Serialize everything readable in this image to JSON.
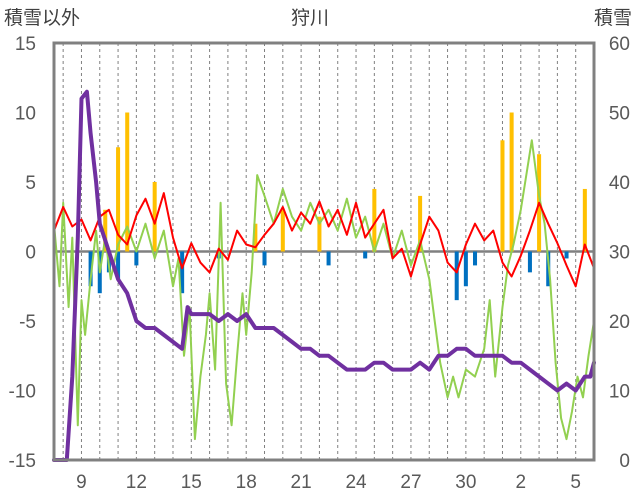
{
  "chart_data": {
    "type": "line",
    "title": "狩川",
    "ylabel_left": "積雪以外",
    "ylabel_right": "積雪",
    "xlabel": "",
    "x_tick_labels": [
      "9",
      "12",
      "15",
      "18",
      "21",
      "24",
      "27",
      "30",
      "2",
      "5"
    ],
    "x_tick_days": [
      1,
      4,
      7,
      10,
      13,
      16,
      19,
      22,
      25,
      28
    ],
    "xlim": [
      -0.5,
      29
    ],
    "ylim_left": [
      -15,
      15
    ],
    "ylim_right": [
      0,
      60
    ],
    "yticks_left": [
      "15",
      "10",
      "5",
      "0",
      "-5",
      "-10",
      "-15"
    ],
    "yticks_left_values": [
      15,
      10,
      5,
      0,
      -5,
      -10,
      -15
    ],
    "yticks_right": [
      "60",
      "50",
      "40",
      "30",
      "20",
      "10",
      "0"
    ],
    "yticks_right_values": [
      60,
      50,
      40,
      30,
      20,
      10,
      0
    ],
    "grid": true,
    "zero_line": true,
    "legend": "none",
    "colors": {
      "red_series": "#ff0000",
      "green_series": "#92d050",
      "snow_depth": "#7030a0",
      "positive_bars": "#ffc000",
      "negative_bars": "#0070c0",
      "grid": "#808080",
      "zero_line": "#808080",
      "frame": "#808080",
      "tick_text": "#595959"
    },
    "series": [
      {
        "axis": "left",
        "color": "#ff0000",
        "points": [
          [
            -0.5,
            1.5
          ],
          [
            0,
            3.2
          ],
          [
            0.5,
            1.8
          ],
          [
            1,
            2.3
          ],
          [
            1.5,
            0.8
          ],
          [
            2,
            2.5
          ],
          [
            2.5,
            3.0
          ],
          [
            3,
            1.2
          ],
          [
            3.5,
            0.5
          ],
          [
            4,
            2.6
          ],
          [
            4.5,
            3.8
          ],
          [
            5,
            2.0
          ],
          [
            5.5,
            4.2
          ],
          [
            6,
            1.0
          ],
          [
            6.5,
            -1.2
          ],
          [
            7,
            0.6
          ],
          [
            7.5,
            -0.8
          ],
          [
            8,
            -1.5
          ],
          [
            8.5,
            0.2
          ],
          [
            9,
            -0.6
          ],
          [
            9.5,
            1.5
          ],
          [
            10,
            0.5
          ],
          [
            10.5,
            0.3
          ],
          [
            11,
            1.2
          ],
          [
            11.5,
            2.0
          ],
          [
            12,
            3.2
          ],
          [
            12.5,
            1.5
          ],
          [
            13,
            2.8
          ],
          [
            13.5,
            2.0
          ],
          [
            14,
            3.6
          ],
          [
            14.5,
            1.8
          ],
          [
            15,
            3.0
          ],
          [
            15.5,
            1.2
          ],
          [
            16,
            3.5
          ],
          [
            16.5,
            1.0
          ],
          [
            17,
            2.0
          ],
          [
            17.5,
            3.0
          ],
          [
            18,
            -0.5
          ],
          [
            18.5,
            0.2
          ],
          [
            19,
            -1.8
          ],
          [
            19.5,
            0.5
          ],
          [
            20,
            2.5
          ],
          [
            20.5,
            1.5
          ],
          [
            21,
            -0.8
          ],
          [
            21.5,
            -1.5
          ],
          [
            22,
            0.5
          ],
          [
            22.5,
            2.0
          ],
          [
            23,
            0.8
          ],
          [
            23.5,
            1.5
          ],
          [
            24,
            -0.8
          ],
          [
            24.5,
            -1.8
          ],
          [
            25,
            -0.3
          ],
          [
            25.5,
            1.5
          ],
          [
            26,
            3.5
          ],
          [
            26.5,
            2.0
          ],
          [
            27,
            0.6
          ],
          [
            27.5,
            -1.0
          ],
          [
            28,
            -2.5
          ],
          [
            28.5,
            0.5
          ],
          [
            29,
            -1.2
          ]
        ]
      },
      {
        "axis": "left",
        "color": "#92d050",
        "points": [
          [
            -0.5,
            2.0
          ],
          [
            -0.2,
            -2.5
          ],
          [
            0,
            3.5
          ],
          [
            0.3,
            -4.0
          ],
          [
            0.5,
            1.0
          ],
          [
            0.8,
            -12.5
          ],
          [
            1.0,
            -3.5
          ],
          [
            1.2,
            -6.0
          ],
          [
            1.5,
            -2.0
          ],
          [
            1.8,
            1.5
          ],
          [
            2.0,
            -1.5
          ],
          [
            2.3,
            1.0
          ],
          [
            2.6,
            -2.0
          ],
          [
            3.0,
            0.5
          ],
          [
            3.5,
            1.8
          ],
          [
            4.0,
            0.0
          ],
          [
            4.5,
            2.0
          ],
          [
            5.0,
            -0.5
          ],
          [
            5.5,
            1.5
          ],
          [
            6.0,
            -2.5
          ],
          [
            6.3,
            -0.5
          ],
          [
            6.6,
            -7.5
          ],
          [
            6.9,
            -4.0
          ],
          [
            7.2,
            -13.5
          ],
          [
            7.5,
            -9.0
          ],
          [
            7.8,
            -6.0
          ],
          [
            8.0,
            -3.0
          ],
          [
            8.3,
            -8.5
          ],
          [
            8.6,
            3.5
          ],
          [
            8.9,
            -9.5
          ],
          [
            9.2,
            -12.5
          ],
          [
            9.5,
            -7.5
          ],
          [
            9.8,
            -3.0
          ],
          [
            10.0,
            -6.0
          ],
          [
            10.3,
            -1.5
          ],
          [
            10.6,
            5.5
          ],
          [
            11.0,
            4.0
          ],
          [
            11.5,
            2.0
          ],
          [
            12.0,
            4.5
          ],
          [
            12.5,
            2.5
          ],
          [
            13.0,
            1.5
          ],
          [
            13.5,
            3.5
          ],
          [
            14.0,
            2.0
          ],
          [
            14.5,
            3.0
          ],
          [
            15.0,
            1.5
          ],
          [
            15.5,
            3.8
          ],
          [
            16.0,
            1.0
          ],
          [
            16.5,
            2.5
          ],
          [
            17.0,
            0.0
          ],
          [
            17.5,
            2.0
          ],
          [
            18.0,
            -0.5
          ],
          [
            18.5,
            1.5
          ],
          [
            19.0,
            -1.0
          ],
          [
            19.5,
            0.8
          ],
          [
            20.0,
            -2.0
          ],
          [
            20.3,
            -5.0
          ],
          [
            20.6,
            -8.0
          ],
          [
            21.0,
            -10.5
          ],
          [
            21.3,
            -9.0
          ],
          [
            21.6,
            -10.5
          ],
          [
            22.0,
            -8.5
          ],
          [
            22.5,
            -9.0
          ],
          [
            23.0,
            -7.0
          ],
          [
            23.3,
            -3.5
          ],
          [
            23.6,
            -9.0
          ],
          [
            24.0,
            -4.0
          ],
          [
            24.3,
            -1.0
          ],
          [
            24.6,
            0.5
          ],
          [
            25.0,
            3.0
          ],
          [
            25.3,
            5.5
          ],
          [
            25.6,
            8.0
          ],
          [
            26.0,
            4.0
          ],
          [
            26.3,
            2.0
          ],
          [
            26.6,
            -2.0
          ],
          [
            26.9,
            -8.0
          ],
          [
            27.2,
            -12.0
          ],
          [
            27.5,
            -13.5
          ],
          [
            27.8,
            -11.5
          ],
          [
            28.1,
            -9.0
          ],
          [
            28.4,
            -10.5
          ],
          [
            28.7,
            -7.5
          ],
          [
            29.0,
            -5.0
          ]
        ]
      },
      {
        "axis": "right",
        "color": "#7030a0",
        "points": [
          [
            -0.5,
            0
          ],
          [
            0.2,
            0
          ],
          [
            0.5,
            12
          ],
          [
            0.8,
            32
          ],
          [
            1.0,
            52
          ],
          [
            1.3,
            53
          ],
          [
            1.5,
            47
          ],
          [
            1.8,
            40
          ],
          [
            2.0,
            34
          ],
          [
            2.5,
            30
          ],
          [
            3.0,
            26
          ],
          [
            3.5,
            24
          ],
          [
            4.0,
            20
          ],
          [
            4.5,
            19
          ],
          [
            5.0,
            19
          ],
          [
            5.5,
            18
          ],
          [
            6.0,
            17
          ],
          [
            6.5,
            16
          ],
          [
            6.8,
            22
          ],
          [
            7.0,
            21
          ],
          [
            7.5,
            21
          ],
          [
            8.0,
            21
          ],
          [
            8.5,
            20
          ],
          [
            9.0,
            21
          ],
          [
            9.5,
            20
          ],
          [
            10.0,
            21
          ],
          [
            10.5,
            19
          ],
          [
            11.0,
            19
          ],
          [
            11.5,
            19
          ],
          [
            12.0,
            18
          ],
          [
            12.5,
            17
          ],
          [
            13.0,
            16
          ],
          [
            13.5,
            16
          ],
          [
            14.0,
            15
          ],
          [
            14.5,
            15
          ],
          [
            15.0,
            14
          ],
          [
            15.5,
            13
          ],
          [
            16.0,
            13
          ],
          [
            16.5,
            13
          ],
          [
            17.0,
            14
          ],
          [
            17.5,
            14
          ],
          [
            18.0,
            13
          ],
          [
            18.5,
            13
          ],
          [
            19.0,
            13
          ],
          [
            19.5,
            14
          ],
          [
            20.0,
            13
          ],
          [
            20.5,
            15
          ],
          [
            21.0,
            15
          ],
          [
            21.5,
            16
          ],
          [
            22.0,
            16
          ],
          [
            22.5,
            15
          ],
          [
            23.0,
            15
          ],
          [
            23.5,
            15
          ],
          [
            24.0,
            15
          ],
          [
            24.5,
            14
          ],
          [
            25.0,
            14
          ],
          [
            25.5,
            13
          ],
          [
            26.0,
            12
          ],
          [
            26.5,
            11
          ],
          [
            27.0,
            10
          ],
          [
            27.5,
            11
          ],
          [
            28.0,
            10
          ],
          [
            28.5,
            12
          ],
          [
            28.8,
            12
          ],
          [
            29.0,
            14
          ]
        ]
      }
    ],
    "bars": {
      "axis": "left",
      "positive": [
        [
          2.3,
          3.0
        ],
        [
          3.0,
          7.5
        ],
        [
          3.5,
          10.0
        ],
        [
          5.0,
          5.0
        ],
        [
          10.5,
          2.0
        ],
        [
          12.0,
          3.0
        ],
        [
          14.0,
          2.5
        ],
        [
          17.0,
          4.5
        ],
        [
          19.5,
          4.0
        ],
        [
          24.0,
          8.0
        ],
        [
          24.5,
          10.0
        ],
        [
          26.0,
          7.0
        ],
        [
          28.5,
          4.5
        ]
      ],
      "negative": [
        [
          1.5,
          -2.5
        ],
        [
          2.0,
          -3.0
        ],
        [
          2.5,
          -1.5
        ],
        [
          3.0,
          -2.0
        ],
        [
          4.0,
          -1.0
        ],
        [
          6.5,
          -3.0
        ],
        [
          8.5,
          -0.5
        ],
        [
          11.0,
          -1.0
        ],
        [
          14.5,
          -1.0
        ],
        [
          16.5,
          -0.5
        ],
        [
          21.5,
          -3.5
        ],
        [
          22.0,
          -2.5
        ],
        [
          22.5,
          -1.0
        ],
        [
          25.5,
          -1.5
        ],
        [
          26.5,
          -2.5
        ],
        [
          27.5,
          -0.5
        ]
      ]
    }
  }
}
